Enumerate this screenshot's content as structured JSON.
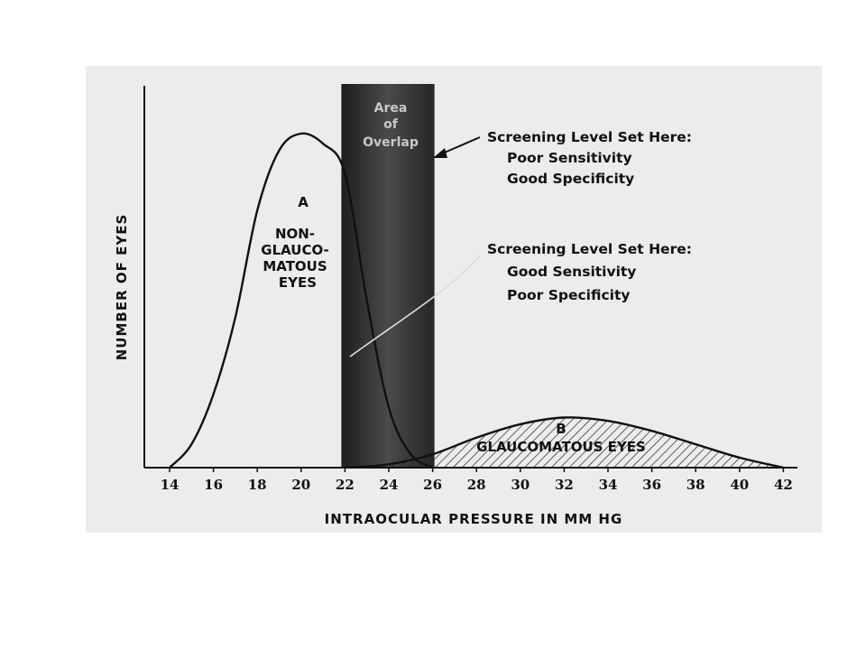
{
  "chart_data": {
    "type": "area",
    "xlabel": "INTRAOCULAR PRESSURE IN MM HG",
    "ylabel": "NUMBER OF EYES",
    "x_ticks": [
      14,
      16,
      18,
      20,
      22,
      24,
      26,
      28,
      30,
      32,
      34,
      36,
      38,
      40,
      42
    ],
    "xlim": [
      13,
      43
    ],
    "ylim": [
      0,
      100
    ],
    "grid": false,
    "series": [
      {
        "label": [
          "A",
          "NON-",
          "GLAUCO-",
          "MATOUS",
          "EYES"
        ],
        "x": [
          14,
          15,
          16,
          17,
          18,
          19,
          20,
          21,
          22,
          23,
          24,
          25,
          26
        ],
        "values": [
          0,
          7,
          22,
          45,
          77,
          95,
          100,
          97,
          88,
          50,
          18,
          4,
          0
        ],
        "fill": "none"
      },
      {
        "label": [
          "B",
          "GLAUCOMATOUS EYES"
        ],
        "x": [
          22,
          24,
          26,
          28,
          30,
          32,
          34,
          36,
          38,
          40,
          42
        ],
        "values": [
          0,
          1,
          4,
          9,
          13,
          15,
          14,
          11,
          7,
          3,
          0
        ],
        "fill": "hatched"
      }
    ],
    "overlap_band": {
      "x_range": [
        22,
        26
      ],
      "label": [
        "Area",
        "of",
        "Overlap"
      ]
    },
    "annotations": [
      {
        "lines": [
          "Screening Level Set Here:",
          "Poor Sensitivity",
          "Good Specificity"
        ],
        "points_to_x": 26
      },
      {
        "lines": [
          "Screening Level Set Here:",
          "Good Sensitivity",
          "Poor Specificity"
        ],
        "points_to_x": 22
      }
    ]
  }
}
